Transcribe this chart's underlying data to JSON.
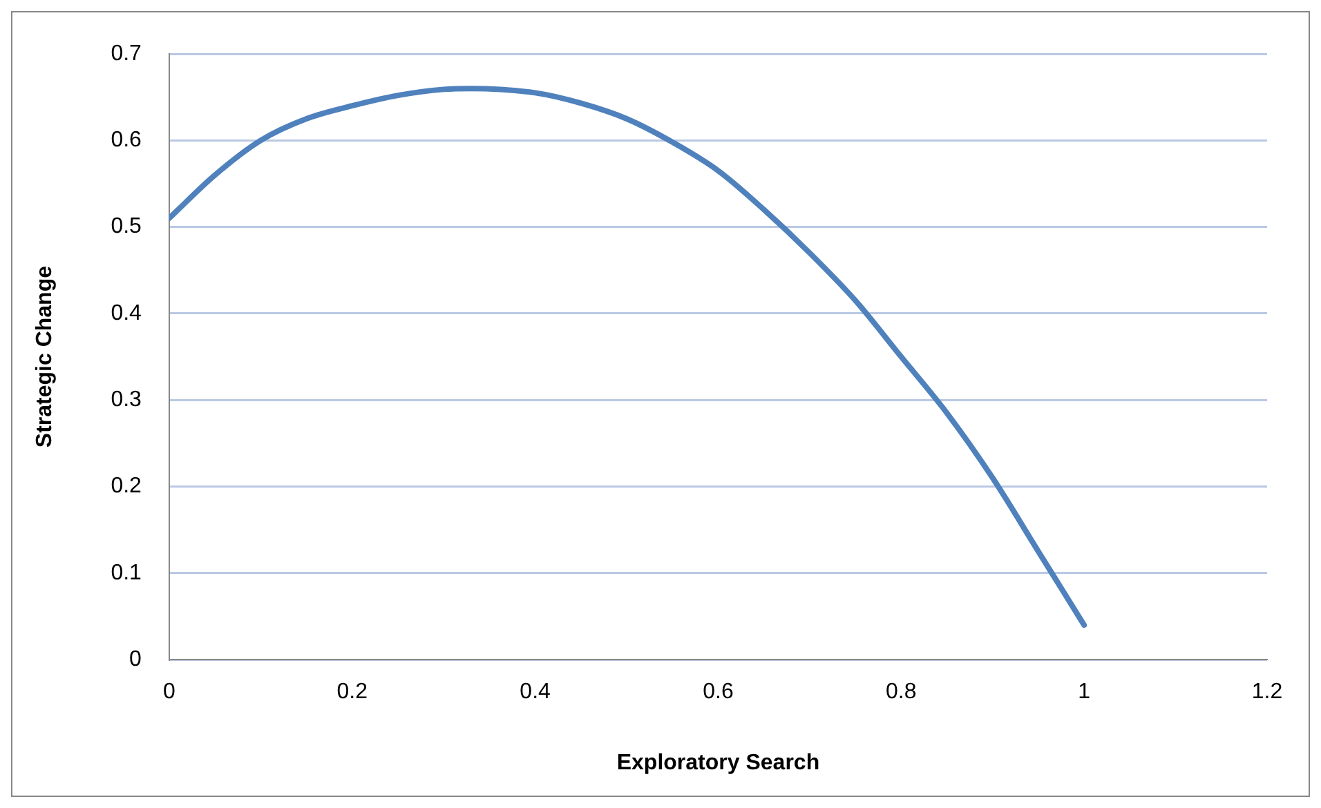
{
  "chart_data": {
    "type": "line",
    "xlabel": "Exploratory Search",
    "ylabel": "Strategic Change",
    "x": [
      0,
      0.05,
      0.1,
      0.15,
      0.2,
      0.25,
      0.3,
      0.33,
      0.4,
      0.45,
      0.5,
      0.55,
      0.6,
      0.65,
      0.7,
      0.75,
      0.8,
      0.85,
      0.9,
      0.95,
      1
    ],
    "series": [
      {
        "color": "#4f81bd",
        "values": [
          0.51,
          0.56,
          0.6,
          0.625,
          0.64,
          0.652,
          0.659,
          0.66,
          0.655,
          0.643,
          0.625,
          0.598,
          0.565,
          0.52,
          0.47,
          0.415,
          0.35,
          0.285,
          0.21,
          0.125,
          0.04
        ]
      }
    ],
    "xlim": [
      0,
      1.2
    ],
    "xticks": [
      0,
      0.2,
      0.4,
      0.6,
      0.8,
      1,
      1.2
    ],
    "ylim": [
      0,
      0.7
    ],
    "yticks": [
      0,
      0.1,
      0.2,
      0.3,
      0.4,
      0.5,
      0.6,
      0.7
    ],
    "grid": "y",
    "legend": false,
    "marker": "none",
    "line_style": "solid"
  }
}
